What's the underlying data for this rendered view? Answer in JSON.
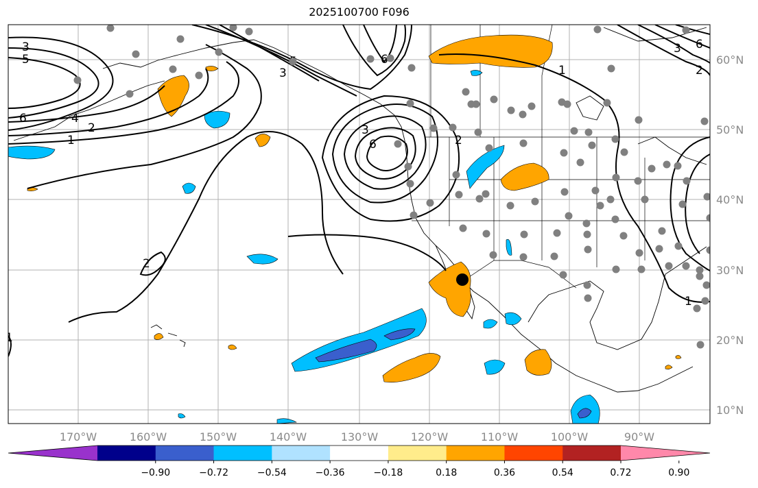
{
  "title": "2025100700 F096",
  "map": {
    "lon_labels": [
      "170°W",
      "160°W",
      "150°W",
      "140°W",
      "130°W",
      "120°W",
      "110°W",
      "100°W",
      "90°W"
    ],
    "lat_labels": [
      "60°N",
      "50°N",
      "40°N",
      "30°N",
      "20°N",
      "10°N"
    ],
    "contour_labels": [
      "3",
      "5",
      "6",
      "4",
      "2",
      "1",
      "6",
      "3",
      "5",
      "3",
      "6",
      "2",
      "1",
      "2",
      "1",
      "3",
      "6",
      "2",
      "1"
    ],
    "colors": {
      "ocean": "#ffffff",
      "grid": "#b0b0b0",
      "contour": "#000000",
      "station": "#808080",
      "marker": "#000000",
      "positive": "#ffa500",
      "negative": "#00bfff",
      "negative_strong": "#3a5fcd"
    }
  },
  "colorbar": {
    "labels": [
      "−0.90",
      "−0.72",
      "−0.54",
      "−0.36",
      "−0.18",
      "0.18",
      "0.36",
      "0.54",
      "0.72",
      "0.90"
    ],
    "colors": [
      "#9932cc",
      "#00008b",
      "#3a5fcd",
      "#00bfff",
      "#b0e2ff",
      "#ffffff",
      "#ffec8b",
      "#ffa500",
      "#ff4500",
      "#b22222",
      "#ff88aa"
    ]
  }
}
